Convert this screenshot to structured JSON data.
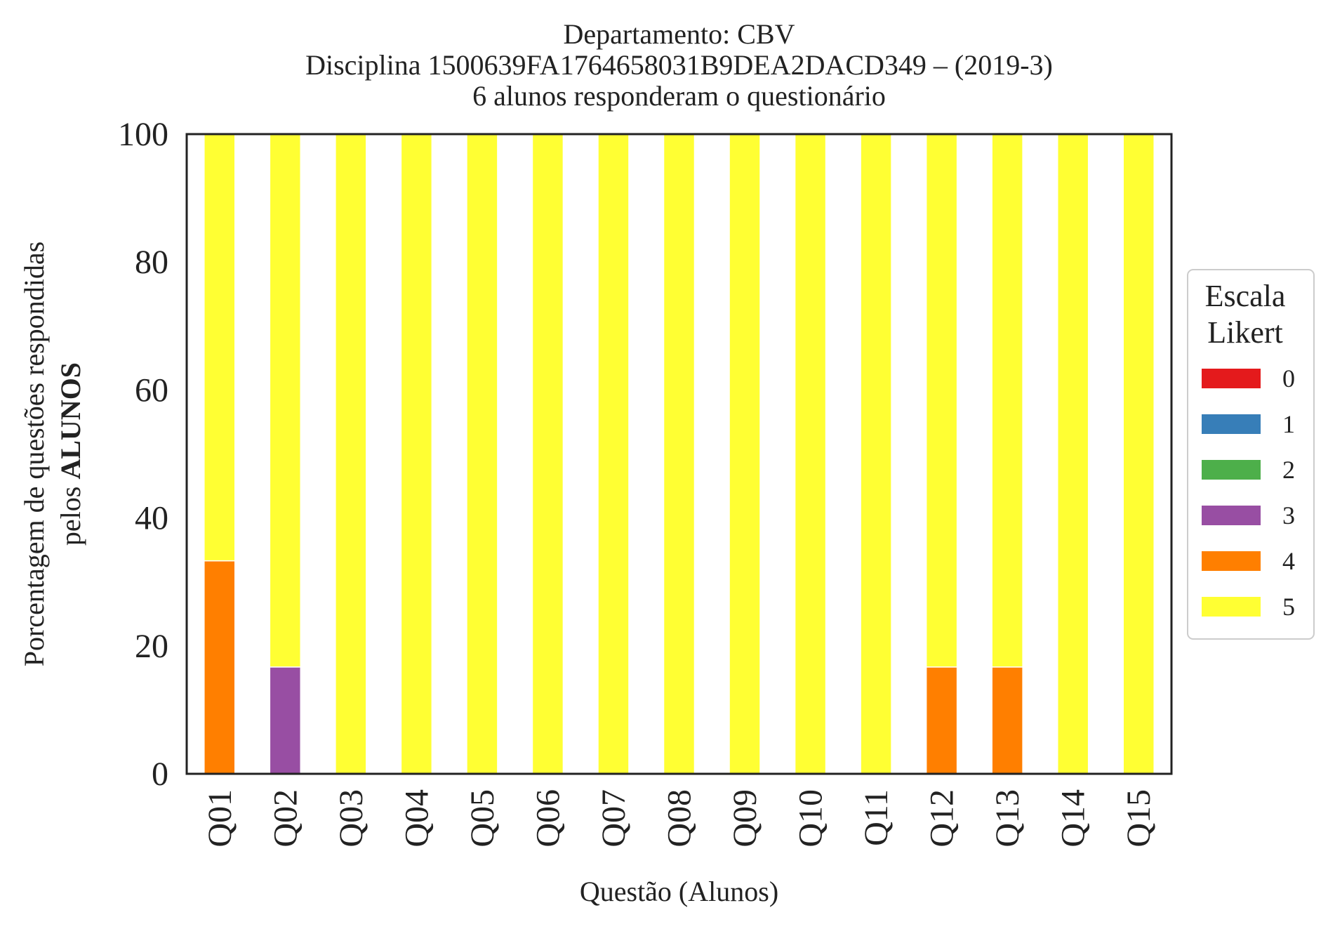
{
  "chart_data": {
    "type": "bar",
    "stacked": true,
    "title_lines": [
      "Departamento: CBV",
      "Disciplina 1500639FA1764658031B9DEA2DACD349 – (2019-3)",
      "6 alunos responderam o questionário"
    ],
    "xlabel": "Questão (Alunos)",
    "ylabel_line1": "Porcentagem de questões respondidas",
    "ylabel_line2_prefix": "pelos ",
    "ylabel_line2_bold": "ALUNOS",
    "ylim": [
      0,
      100
    ],
    "yticks": [
      0,
      20,
      40,
      60,
      80,
      100
    ],
    "categories": [
      "Q01",
      "Q02",
      "Q03",
      "Q04",
      "Q05",
      "Q06",
      "Q07",
      "Q08",
      "Q09",
      "Q10",
      "Q11",
      "Q12",
      "Q13",
      "Q14",
      "Q15"
    ],
    "legend": {
      "title_lines": [
        "Escala",
        "Likert"
      ],
      "placement": "right-outside"
    },
    "series": [
      {
        "name": "0",
        "color": "#e41a1c",
        "values": [
          0,
          0,
          0,
          0,
          0,
          0,
          0,
          0,
          0,
          0,
          0,
          0,
          0,
          0,
          0
        ]
      },
      {
        "name": "1",
        "color": "#377eb8",
        "values": [
          0,
          0,
          0,
          0,
          0,
          0,
          0,
          0,
          0,
          0,
          0,
          0,
          0,
          0,
          0
        ]
      },
      {
        "name": "2",
        "color": "#4daf4a",
        "values": [
          0,
          0,
          0,
          0,
          0,
          0,
          0,
          0,
          0,
          0,
          0,
          0,
          0,
          0,
          0
        ]
      },
      {
        "name": "3",
        "color": "#984ea3",
        "values": [
          0,
          16.7,
          0,
          0,
          0,
          0,
          0,
          0,
          0,
          0,
          0,
          0,
          0,
          0,
          0
        ]
      },
      {
        "name": "4",
        "color": "#ff7f00",
        "values": [
          33.3,
          0,
          0,
          0,
          0,
          0,
          0,
          0,
          0,
          0,
          0,
          16.7,
          16.7,
          0,
          0
        ]
      },
      {
        "name": "5",
        "color": "#ffff33",
        "values": [
          66.7,
          83.3,
          100,
          100,
          100,
          100,
          100,
          100,
          100,
          100,
          100,
          83.3,
          83.3,
          100,
          100
        ]
      }
    ]
  }
}
